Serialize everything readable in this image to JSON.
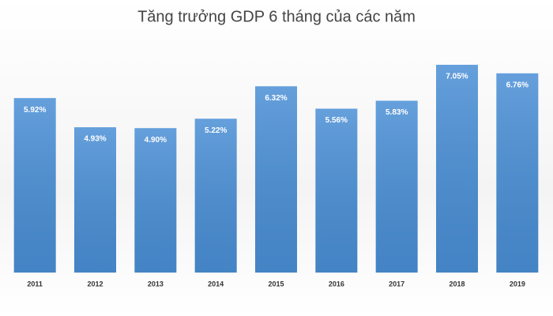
{
  "chart_data": {
    "type": "bar",
    "title": "Tăng trưởng GDP 6 tháng của các năm",
    "categories": [
      "2011",
      "2012",
      "2013",
      "2014",
      "2015",
      "2016",
      "2017",
      "2018",
      "2019"
    ],
    "values": [
      5.92,
      4.93,
      4.9,
      5.22,
      6.32,
      5.56,
      5.83,
      7.05,
      6.76
    ],
    "value_labels": [
      "5.92%",
      "4.93%",
      "4.90%",
      "5.22%",
      "6.32%",
      "5.56%",
      "5.83%",
      "7.05%",
      "6.76%"
    ],
    "color": "#4a8fd6"
  }
}
